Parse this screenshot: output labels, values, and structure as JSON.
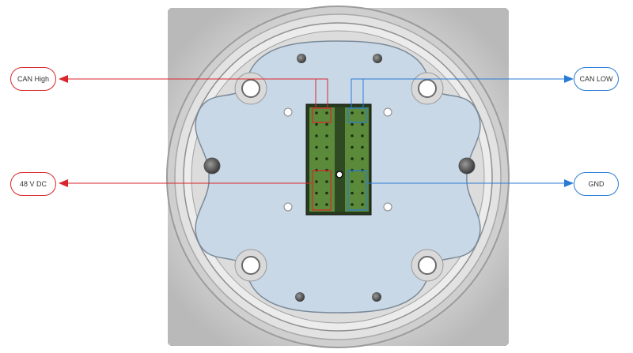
{
  "callouts": {
    "can_high": "CAN High",
    "v48_dc": "48 V DC",
    "can_low": "CAN LOW",
    "gnd": "GND"
  },
  "colors": {
    "red": "#d9262c",
    "blue": "#2a7bd6",
    "panel": "#c9d8e6",
    "housing": "#d8d8d8",
    "connector_green": "#5a8a3a",
    "connector_dark": "#263a1c"
  }
}
